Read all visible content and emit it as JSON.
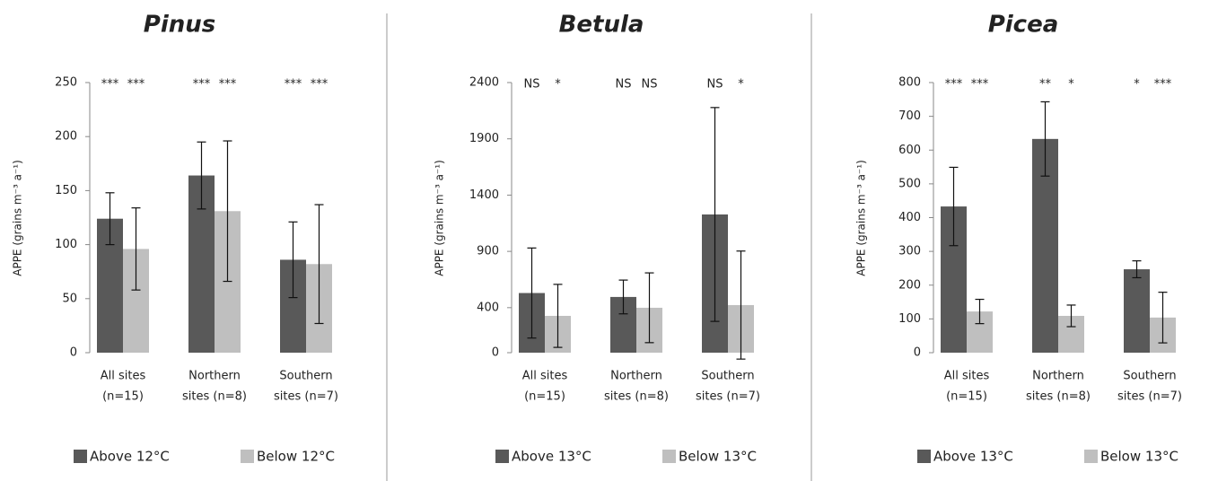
{
  "chart_data": [
    {
      "type": "bar",
      "title": "Pinus",
      "y_label": "APPE (grains m⁻³ a⁻¹)",
      "categories": [
        [
          "All sites",
          "(n=15)"
        ],
        [
          "Northern",
          "sites (n=8)"
        ],
        [
          "Southern",
          "sites (n=7)"
        ]
      ],
      "series": [
        {
          "name": "Above 12°C",
          "color": "#595959",
          "values": [
            124,
            164,
            86
          ],
          "errors": [
            24,
            31,
            35
          ],
          "significance": [
            "***",
            "***",
            "***"
          ]
        },
        {
          "name": "Below 12°C",
          "color": "#bfbfbf",
          "values": [
            96,
            131,
            82
          ],
          "errors": [
            38,
            65,
            55
          ],
          "significance": [
            "***",
            "***",
            "***"
          ]
        }
      ],
      "ylim": [
        0,
        250
      ],
      "yticks": [
        0,
        50,
        100,
        150,
        200,
        250
      ],
      "grid": false,
      "legend": "bottom"
    },
    {
      "type": "bar",
      "title": "Betula",
      "y_label": "APPE (grains m⁻³ a⁻¹)",
      "categories": [
        [
          "All sites",
          "(n=15)"
        ],
        [
          "Northern",
          "sites (n=8)"
        ],
        [
          "Southern",
          "sites (n=7)"
        ]
      ],
      "series": [
        {
          "name": "Above 13°C",
          "color": "#595959",
          "values": [
            530,
            495,
            1228
          ],
          "errors": [
            400,
            150,
            950
          ],
          "significance": [
            "NS",
            "NS",
            "NS"
          ]
        },
        {
          "name": "Below 13°C",
          "color": "#bfbfbf",
          "values": [
            327,
            399,
            423
          ],
          "errors": [
            280,
            310,
            480
          ],
          "significance": [
            "*",
            "NS",
            "*"
          ]
        }
      ],
      "ylim": [
        0,
        2400
      ],
      "yticks": [
        0,
        400,
        900,
        1400,
        1900,
        2400
      ],
      "grid": false,
      "legend": "bottom"
    },
    {
      "type": "bar",
      "title": "Picea",
      "y_label": "APPE (grains m⁻³ a⁻¹)",
      "categories": [
        [
          "All sites",
          "(n=15)"
        ],
        [
          "Northern",
          "sites (n=8)"
        ],
        [
          "Southern",
          "sites (n=7)"
        ]
      ],
      "series": [
        {
          "name": "Above 13°C",
          "color": "#595959",
          "values": [
            433,
            633,
            247
          ],
          "errors": [
            116,
            110,
            25
          ],
          "significance": [
            "***",
            "**",
            "*"
          ]
        },
        {
          "name": "Below 13°C",
          "color": "#bfbfbf",
          "values": [
            122,
            109,
            104
          ],
          "errors": [
            36,
            32,
            75
          ],
          "significance": [
            "***",
            "*",
            "***"
          ]
        }
      ],
      "ylim": [
        0,
        800
      ],
      "yticks": [
        0,
        100,
        200,
        300,
        400,
        500,
        600,
        700,
        800
      ],
      "grid": false,
      "legend": "bottom"
    }
  ]
}
